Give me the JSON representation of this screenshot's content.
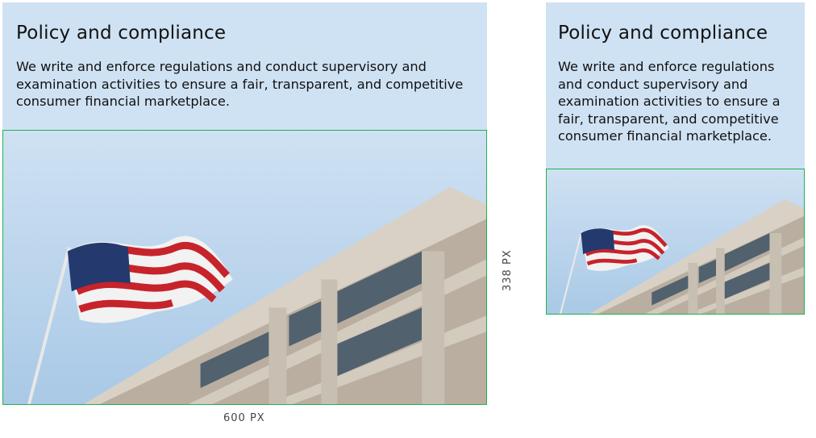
{
  "large_card": {
    "title": "Policy and compliance",
    "body": "We write and enforce regulations and conduct supervisory and examination activities to ensure a fair, transparent, and competitive consumer financial marketplace.",
    "image_alt": "American flag waving in front of a concrete office building"
  },
  "small_card": {
    "title": "Policy and compliance",
    "body": "We write and enforce regulations and conduct supervisory and examination activities to ensure a fair, transparent, and competitive consumer financial marketplace.",
    "image_alt": "American flag waving in front of a concrete office building"
  },
  "dimensions": {
    "width_label": "600 PX",
    "height_label": "338 PX"
  },
  "colors": {
    "card_background": "#cfe2f3",
    "image_outline": "#22b24c",
    "text": "#111111"
  }
}
